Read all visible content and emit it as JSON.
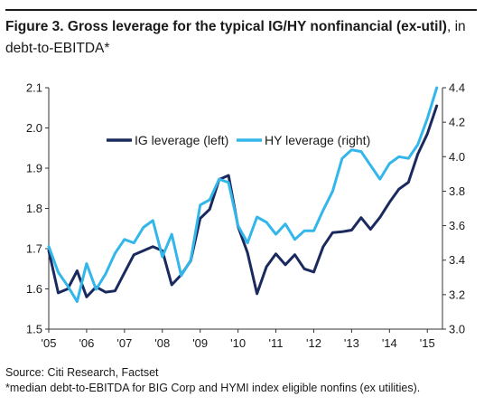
{
  "header": {
    "title_bold": "Figure 3. Gross leverage for the typical IG/HY nonfinancial (ex-util)",
    "title_rest": ", in debt-to-EBITDA*"
  },
  "footer": {
    "source": "Source: Citi Research, Factset",
    "note": "*median debt-to-EBITDA for BIG Corp and HYMI index eligible nonfins (ex utilities)."
  },
  "chart_data": {
    "type": "line",
    "x_range": [
      2005.0,
      2015.4
    ],
    "x_ticks": [
      {
        "x": 2005,
        "label": "'05"
      },
      {
        "x": 2006,
        "label": "'06"
      },
      {
        "x": 2007,
        "label": "'07"
      },
      {
        "x": 2008,
        "label": "'08"
      },
      {
        "x": 2009,
        "label": "'09"
      },
      {
        "x": 2010,
        "label": "'10"
      },
      {
        "x": 2011,
        "label": "'11"
      },
      {
        "x": 2012,
        "label": "'12"
      },
      {
        "x": 2013,
        "label": "'13"
      },
      {
        "x": 2014,
        "label": "'14"
      },
      {
        "x": 2015,
        "label": "'15"
      }
    ],
    "y_left": {
      "range": [
        1.5,
        2.1
      ],
      "ticks": [
        "1.5",
        "1.6",
        "1.7",
        "1.8",
        "1.9",
        "2.0",
        "2.1"
      ]
    },
    "y_right": {
      "range": [
        3.0,
        4.4
      ],
      "ticks": [
        "3.0",
        "3.2",
        "3.4",
        "3.6",
        "3.8",
        "4.0",
        "4.2",
        "4.4"
      ]
    },
    "grid": false,
    "legend_position": "top-center",
    "series": [
      {
        "name": "IG leverage (left)",
        "axis": "left",
        "color": "#1b2a5e",
        "x": [
          2005.0,
          2005.25,
          2005.5,
          2005.75,
          2006.0,
          2006.25,
          2006.5,
          2006.75,
          2007.0,
          2007.25,
          2007.5,
          2007.75,
          2008.0,
          2008.25,
          2008.5,
          2008.75,
          2009.0,
          2009.25,
          2009.5,
          2009.75,
          2010.0,
          2010.25,
          2010.5,
          2010.75,
          2011.0,
          2011.25,
          2011.5,
          2011.75,
          2012.0,
          2012.25,
          2012.5,
          2012.75,
          2013.0,
          2013.25,
          2013.5,
          2013.75,
          2014.0,
          2014.25,
          2014.5,
          2014.75,
          2015.0,
          2015.25
        ],
        "y": [
          1.695,
          1.59,
          1.6,
          1.645,
          1.58,
          1.605,
          1.592,
          1.595,
          1.64,
          1.685,
          1.695,
          1.705,
          1.695,
          1.61,
          1.635,
          1.67,
          1.775,
          1.798,
          1.872,
          1.882,
          1.755,
          1.69,
          1.588,
          1.655,
          1.687,
          1.66,
          1.685,
          1.65,
          1.642,
          1.705,
          1.74,
          1.742,
          1.746,
          1.777,
          1.748,
          1.778,
          1.815,
          1.848,
          1.865,
          1.935,
          1.985,
          2.055
        ]
      },
      {
        "name": "HY leverage (right)",
        "axis": "right",
        "color": "#33b6ea",
        "x": [
          2005.0,
          2005.25,
          2005.5,
          2005.75,
          2006.0,
          2006.25,
          2006.5,
          2006.75,
          2007.0,
          2007.25,
          2007.5,
          2007.75,
          2008.0,
          2008.25,
          2008.5,
          2008.75,
          2009.0,
          2009.25,
          2009.5,
          2009.75,
          2010.0,
          2010.25,
          2010.5,
          2010.75,
          2011.0,
          2011.25,
          2011.5,
          2011.75,
          2012.0,
          2012.25,
          2012.5,
          2012.75,
          2013.0,
          2013.25,
          2013.5,
          2013.75,
          2014.0,
          2014.25,
          2014.5,
          2014.75,
          2015.0,
          2015.25
        ],
        "y": [
          3.48,
          3.33,
          3.25,
          3.16,
          3.38,
          3.23,
          3.32,
          3.44,
          3.52,
          3.5,
          3.59,
          3.63,
          3.42,
          3.55,
          3.31,
          3.4,
          3.72,
          3.75,
          3.87,
          3.85,
          3.6,
          3.5,
          3.65,
          3.62,
          3.55,
          3.61,
          3.52,
          3.57,
          3.57,
          3.69,
          3.8,
          3.99,
          4.04,
          4.03,
          3.95,
          3.87,
          3.96,
          4.0,
          3.99,
          4.07,
          4.22,
          4.4
        ]
      }
    ]
  }
}
